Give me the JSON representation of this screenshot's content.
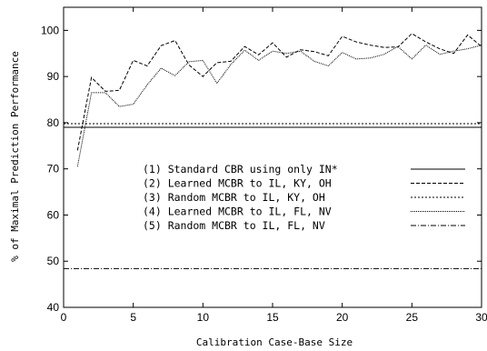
{
  "chart_data": {
    "type": "line",
    "xlabel": "Calibration Case-Base Size",
    "ylabel": "% of Maximal Prediction Performance",
    "xlim": [
      0,
      30
    ],
    "ylim": [
      40,
      105
    ],
    "xticks": [
      0,
      5,
      10,
      15,
      20,
      25,
      30
    ],
    "yticks": [
      40,
      50,
      60,
      70,
      80,
      90,
      100
    ],
    "grid": false,
    "legend_position": "center-right",
    "series": [
      {
        "name": "(1) Standard CBR using only IN*",
        "style": "solid",
        "constant": 79.0
      },
      {
        "name": "(2) Learned MCBR to IL, KY, OH",
        "style": "dashed",
        "x": [
          1,
          2,
          3,
          4,
          5,
          6,
          7,
          8,
          9,
          10,
          11,
          12,
          13,
          14,
          15,
          16,
          17,
          18,
          19,
          20,
          21,
          22,
          23,
          24,
          25,
          26,
          27,
          28,
          29,
          30
        ],
        "y": [
          74,
          89.8,
          86.8,
          87,
          93.5,
          92.3,
          96.7,
          97.8,
          92.5,
          90,
          93,
          93.3,
          96.5,
          94.7,
          97.3,
          94.2,
          95.8,
          95.4,
          94.5,
          98.7,
          97.5,
          96.8,
          96.3,
          96.4,
          99.3,
          97.5,
          96,
          95,
          99,
          96.5
        ]
      },
      {
        "name": "(3) Random MCBR to IL, KY, OH",
        "style": "dotted",
        "constant": 79.8
      },
      {
        "name": "(4) Learned MCBR to IL, FL, NV",
        "style": "densely-dotted",
        "x": [
          1,
          2,
          3,
          4,
          5,
          6,
          7,
          8,
          9,
          10,
          11,
          12,
          13,
          14,
          15,
          16,
          17,
          18,
          19,
          20,
          21,
          22,
          23,
          24,
          25,
          26,
          27,
          28,
          29,
          30
        ],
        "y": [
          70.5,
          86.5,
          86.5,
          83.5,
          84,
          88.2,
          91.8,
          90.2,
          93.2,
          93.5,
          88.5,
          92.6,
          95.7,
          93.5,
          95.5,
          95,
          95.5,
          93.3,
          92.3,
          95.2,
          93.8,
          94,
          94.8,
          96.5,
          93.8,
          96.8,
          94.8,
          95.5,
          96,
          96.8
        ]
      },
      {
        "name": "(5) Random MCBR to IL, FL, NV",
        "style": "dash-dot",
        "constant": 48.4
      }
    ]
  }
}
